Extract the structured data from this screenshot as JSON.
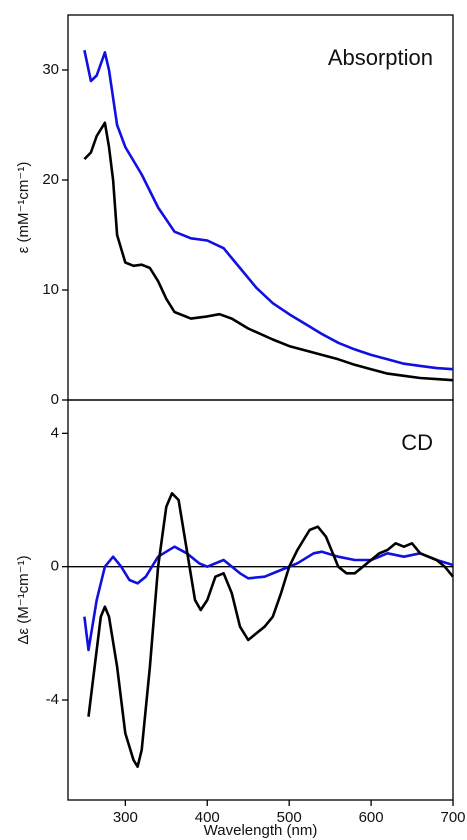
{
  "chart_data": [
    {
      "type": "line",
      "title": "Absorption",
      "y_label": "ε (mM⁻¹cm⁻¹)",
      "xlim": [
        230,
        700
      ],
      "ylim": [
        0,
        35
      ],
      "yticks": [
        0,
        10,
        20,
        30
      ],
      "series": [
        {
          "color": "#1010e0",
          "x": [
            250,
            258,
            265,
            275,
            280,
            290,
            300,
            320,
            340,
            360,
            380,
            400,
            420,
            440,
            460,
            480,
            500,
            520,
            540,
            560,
            580,
            600,
            620,
            640,
            660,
            680,
            700
          ],
          "values": [
            31.8,
            29,
            29.5,
            31.6,
            30,
            25,
            23,
            20.5,
            17.5,
            15.3,
            14.7,
            14.5,
            13.8,
            12,
            10.2,
            8.8,
            7.8,
            6.9,
            6,
            5.2,
            4.6,
            4.1,
            3.7,
            3.3,
            3.1,
            2.9,
            2.8
          ]
        },
        {
          "color": "#000000",
          "x": [
            250,
            258,
            265,
            275,
            280,
            285,
            290,
            300,
            310,
            320,
            330,
            340,
            350,
            360,
            380,
            400,
            415,
            430,
            450,
            480,
            500,
            520,
            540,
            560,
            580,
            600,
            620,
            640,
            660,
            680,
            700
          ],
          "values": [
            21.9,
            22.5,
            24,
            25.2,
            23,
            20,
            15,
            12.5,
            12.2,
            12.3,
            12,
            10.8,
            9.2,
            8,
            7.4,
            7.6,
            7.8,
            7.4,
            6.5,
            5.5,
            4.9,
            4.5,
            4.1,
            3.7,
            3.2,
            2.8,
            2.4,
            2.2,
            2,
            1.9,
            1.8
          ]
        }
      ]
    },
    {
      "type": "line",
      "title": "CD",
      "y_label": "Δε (M⁻¹cm⁻¹)",
      "x_label": "Wavelength (nm)",
      "xlim": [
        230,
        700
      ],
      "ylim": [
        -7,
        5
      ],
      "xticks": [
        300,
        400,
        500,
        600,
        700
      ],
      "yticks": [
        -4,
        0,
        4
      ],
      "zero_line": true,
      "series": [
        {
          "color": "#1010e0",
          "x": [
            250,
            255,
            265,
            275,
            285,
            295,
            305,
            315,
            325,
            340,
            360,
            375,
            390,
            400,
            420,
            440,
            450,
            470,
            490,
            510,
            530,
            540,
            560,
            580,
            600,
            620,
            640,
            660,
            680,
            700
          ],
          "values": [
            -1.5,
            -2.5,
            -1,
            0,
            0.3,
            0,
            -0.4,
            -0.5,
            -0.3,
            0.3,
            0.6,
            0.4,
            0.1,
            0,
            0.2,
            -0.2,
            -0.35,
            -0.3,
            -0.1,
            0.1,
            0.4,
            0.45,
            0.3,
            0.2,
            0.2,
            0.4,
            0.3,
            0.4,
            0.2,
            0.05
          ]
        },
        {
          "color": "#000000",
          "x": [
            255,
            260,
            270,
            275,
            280,
            290,
            300,
            310,
            315,
            320,
            330,
            340,
            350,
            357,
            365,
            375,
            385,
            392,
            400,
            410,
            420,
            430,
            440,
            450,
            460,
            470,
            480,
            490,
            500,
            510,
            525,
            535,
            545,
            560,
            570,
            580,
            590,
            600,
            610,
            620,
            630,
            640,
            650,
            660,
            670,
            680,
            690,
            700
          ],
          "values": [
            -4.5,
            -3.5,
            -1.5,
            -1.2,
            -1.5,
            -3,
            -5,
            -5.8,
            -6,
            -5.5,
            -3,
            0,
            1.8,
            2.2,
            2,
            0.5,
            -1,
            -1.3,
            -1,
            -0.3,
            -0.2,
            -0.8,
            -1.8,
            -2.2,
            -2,
            -1.8,
            -1.5,
            -0.8,
            0,
            0.5,
            1.1,
            1.2,
            0.9,
            0,
            -0.2,
            -0.2,
            0,
            0.2,
            0.4,
            0.5,
            0.7,
            0.6,
            0.7,
            0.4,
            0.3,
            0.2,
            0,
            -0.3
          ]
        }
      ]
    }
  ]
}
